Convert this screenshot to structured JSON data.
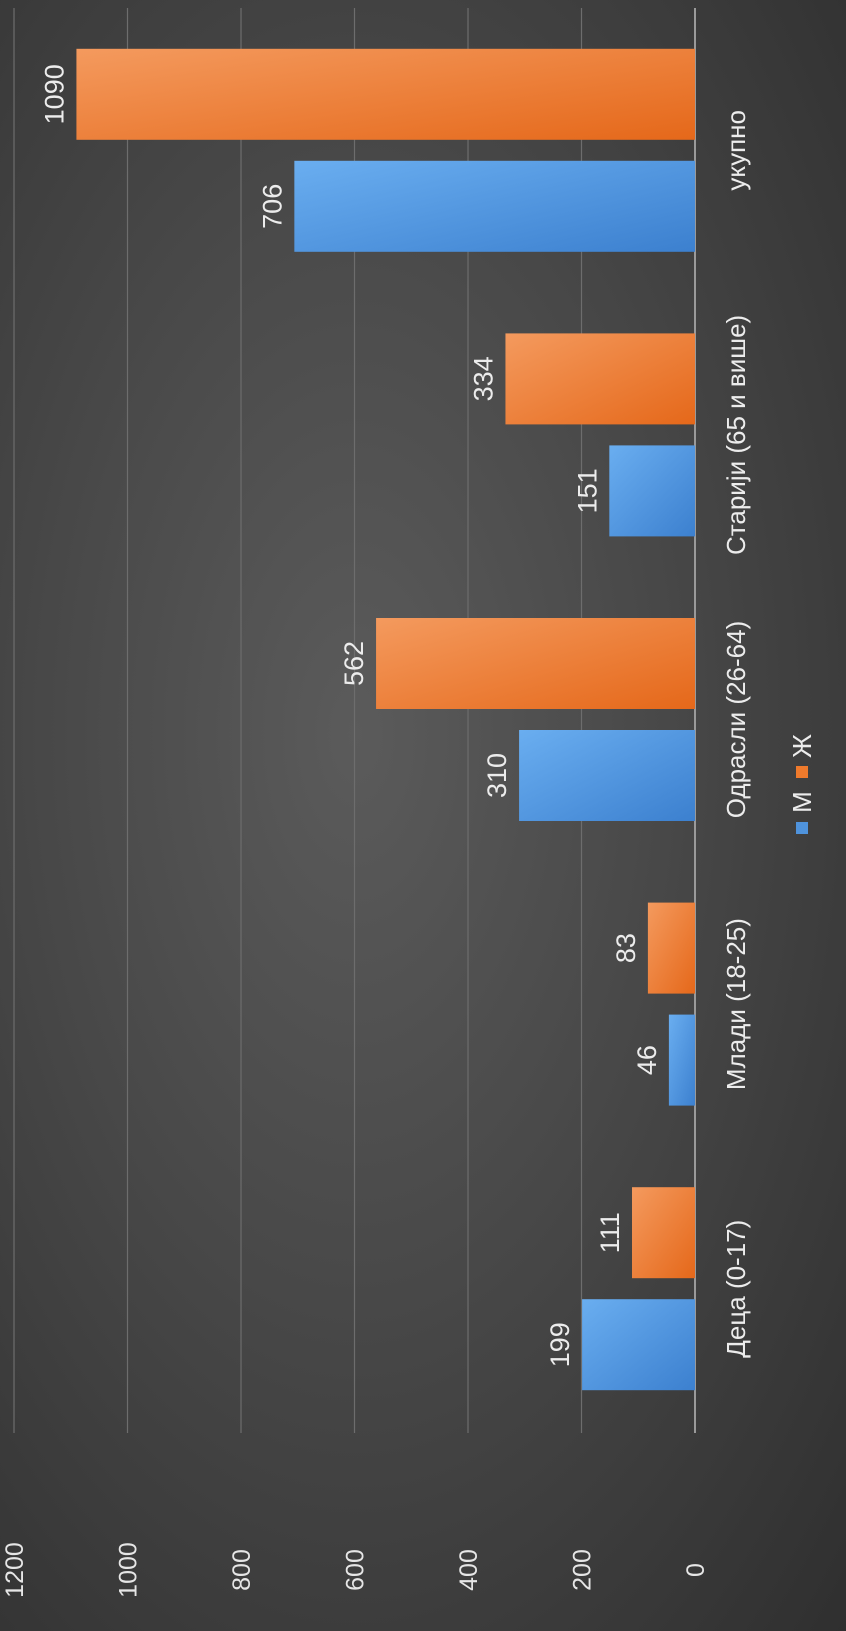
{
  "chart_data": {
    "type": "bar",
    "orientation": "horizontal",
    "categories": [
      "Деца (0-17)",
      "Млади (18-25)",
      "Одрасли (26-64)",
      "Старији (65 и више)",
      "укупно"
    ],
    "series": [
      {
        "name": "М",
        "color": "#4f93dc",
        "values": [
          199,
          46,
          310,
          151,
          706
        ]
      },
      {
        "name": "Ж",
        "color": "#ef7a2c",
        "values": [
          111,
          83,
          562,
          334,
          1090
        ]
      }
    ],
    "xlim": [
      0,
      1200
    ],
    "ticks": [
      "0",
      "200",
      "400",
      "600",
      "800",
      "1000",
      "1200"
    ],
    "grid": true,
    "legend": "bottom",
    "title": "",
    "xlabel": "",
    "ylabel": ""
  }
}
